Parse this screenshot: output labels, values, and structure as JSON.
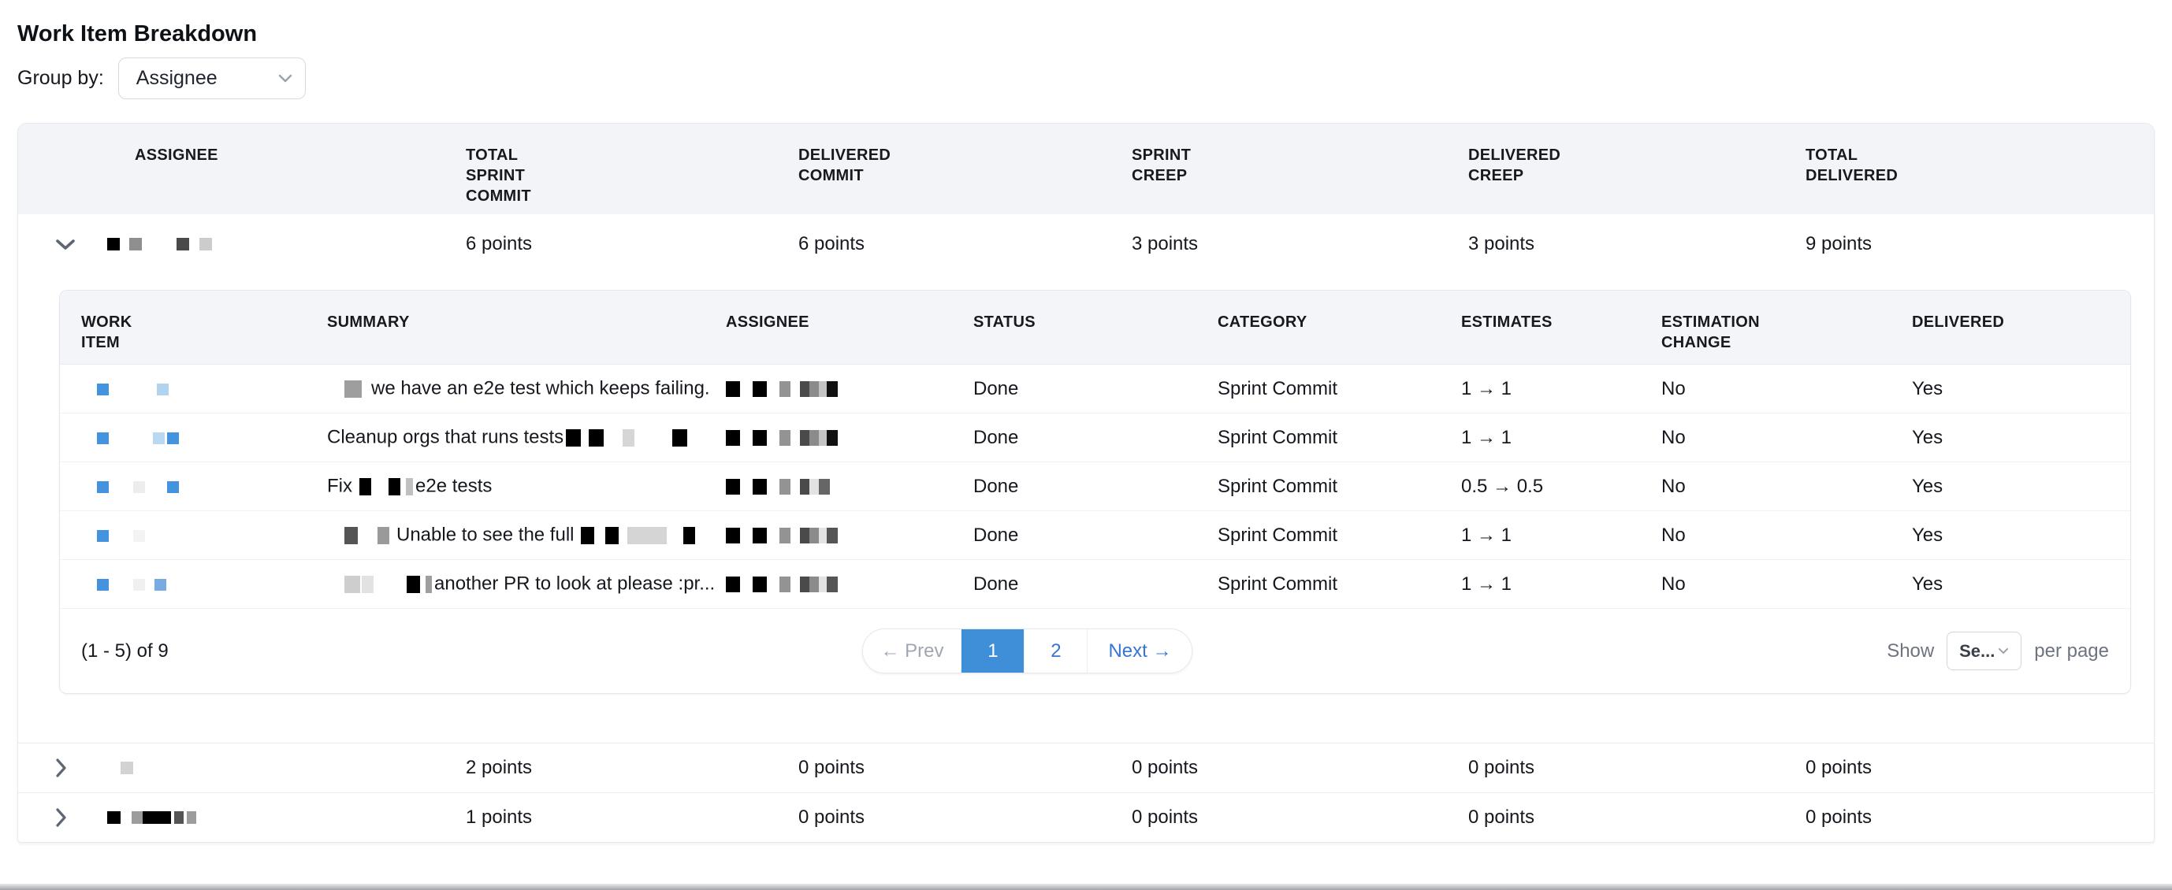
{
  "page": {
    "title": "Work Item Breakdown"
  },
  "group_by": {
    "label": "Group by:",
    "value": "Assignee"
  },
  "colors": {
    "accent_blue": "#4493de",
    "light_blue": "#b1d3ee",
    "pagination_active_bg": "#3e8ed8",
    "link_blue": "#3575d3",
    "header_band": "#f3f4f7"
  },
  "outer_table": {
    "headers": [
      "Assignee",
      "Total Sprint Commit",
      "Delivered Commit",
      "Sprint Creep",
      "Delivered Creep",
      "Total Delivered"
    ],
    "groups": [
      {
        "expanded": true,
        "name_blocks": [
          {
            "w": 16,
            "h": 16,
            "c": "#000000"
          },
          {
            "w": 16,
            "h": 16,
            "c": "#8f8f8f",
            "ml": 12
          },
          {
            "w": 16,
            "h": 16,
            "c": "#4a4a4a",
            "ml": 44
          },
          {
            "w": 16,
            "h": 16,
            "c": "#cccccc",
            "ml": 13
          }
        ],
        "total_sprint_commit": "6 points",
        "delivered_commit": "6 points",
        "sprint_creep": "3 points",
        "delivered_creep": "3 points",
        "total_delivered": "9 points"
      },
      {
        "expanded": false,
        "name_blocks": [
          {
            "w": 16,
            "h": 16,
            "c": "#d2d2d2",
            "ml": 17
          }
        ],
        "total_sprint_commit": "2 points",
        "delivered_commit": "0 points",
        "sprint_creep": "0 points",
        "delivered_creep": "0 points",
        "total_delivered": "0 points"
      },
      {
        "expanded": false,
        "name_blocks": [
          {
            "w": 17,
            "h": 16,
            "c": "#000000"
          },
          {
            "w": 14,
            "h": 16,
            "c": "#9c9c9c",
            "ml": 14
          },
          {
            "w": 36,
            "h": 16,
            "c": "#000000"
          },
          {
            "w": 12,
            "h": 16,
            "c": "#555555",
            "ml": 4
          },
          {
            "w": 12,
            "h": 16,
            "c": "#9c9c9c",
            "ml": 4
          }
        ],
        "total_sprint_commit": "1 points",
        "delivered_commit": "0 points",
        "sprint_creep": "0 points",
        "delivered_creep": "0 points",
        "total_delivered": "0 points"
      }
    ]
  },
  "inner_table": {
    "headers": [
      "Work Item",
      "Summary",
      "Assignee",
      "Status",
      "Category",
      "Estimates",
      "Estimation Change",
      "Delivered"
    ],
    "rows": [
      {
        "type_icons": [
          {
            "w": 15,
            "h": 15,
            "c": "#4493de"
          },
          {
            "w": 15,
            "h": 15,
            "c": "#b1d3ee",
            "ml": 61
          }
        ],
        "summary": [
          {
            "w": 22,
            "h": 22,
            "c": "#9e9e9e",
            "ml": 22,
            "mr": 12
          },
          {
            "t": "we have an e2e test which keeps failing."
          }
        ],
        "assignee_blocks": [
          {
            "w": 18,
            "h": 20,
            "c": "#000000"
          },
          {
            "w": 18,
            "h": 20,
            "c": "#000000",
            "ml": 16
          },
          {
            "w": 14,
            "h": 20,
            "c": "#939393",
            "ml": 16
          },
          {
            "w": 12,
            "h": 20,
            "c": "#4a4a4a",
            "ml": 12
          },
          {
            "w": 12,
            "h": 20,
            "c": "#8b8b8b"
          },
          {
            "w": 10,
            "h": 20,
            "c": "#c4c4c4"
          },
          {
            "w": 14,
            "h": 20,
            "c": "#111111"
          }
        ],
        "status": "Done",
        "category": "Sprint Commit",
        "estimates": "1 → 1",
        "estimation_change": "No",
        "delivered": "Yes"
      },
      {
        "type_icons": [
          {
            "w": 15,
            "h": 15,
            "c": "#4493de"
          },
          {
            "w": 15,
            "h": 15,
            "c": "#b9d8f1",
            "ml": 56
          },
          {
            "w": 15,
            "h": 15,
            "c": "#4493de",
            "ml": 3
          }
        ],
        "summary": [
          {
            "t": "Cleanup orgs that runs tests"
          },
          {
            "w": 19,
            "h": 22,
            "c": "#000000",
            "ml": 3,
            "mr": 10
          },
          {
            "w": 19,
            "h": 22,
            "c": "#000000",
            "mr": 24
          },
          {
            "w": 15,
            "h": 22,
            "c": "#d6d6d6",
            "mr": 48
          },
          {
            "w": 19,
            "h": 22,
            "c": "#000000"
          }
        ],
        "assignee_blocks": [
          {
            "w": 18,
            "h": 20,
            "c": "#000000"
          },
          {
            "w": 18,
            "h": 20,
            "c": "#000000",
            "ml": 16
          },
          {
            "w": 14,
            "h": 20,
            "c": "#939393",
            "ml": 16
          },
          {
            "w": 12,
            "h": 20,
            "c": "#4a4a4a",
            "ml": 12
          },
          {
            "w": 12,
            "h": 20,
            "c": "#8b8b8b"
          },
          {
            "w": 10,
            "h": 20,
            "c": "#c4c4c4"
          },
          {
            "w": 14,
            "h": 20,
            "c": "#111111"
          }
        ],
        "status": "Done",
        "category": "Sprint Commit",
        "estimates": "1 → 1",
        "estimation_change": "No",
        "delivered": "Yes"
      },
      {
        "type_icons": [
          {
            "w": 15,
            "h": 15,
            "c": "#4493de"
          },
          {
            "w": 15,
            "h": 15,
            "c": "#ededed",
            "ml": 31
          },
          {
            "w": 15,
            "h": 15,
            "c": "#4493de",
            "ml": 28
          }
        ],
        "summary": [
          {
            "t": "Fix"
          },
          {
            "w": 15,
            "h": 22,
            "c": "#000000",
            "ml": 9,
            "mr": 22
          },
          {
            "w": 15,
            "h": 22,
            "c": "#000000",
            "mr": 7
          },
          {
            "w": 9,
            "h": 22,
            "c": "#c0c0c0",
            "mr": 3
          },
          {
            "t": "e2e tests"
          }
        ],
        "assignee_blocks": [
          {
            "w": 18,
            "h": 20,
            "c": "#000000"
          },
          {
            "w": 18,
            "h": 20,
            "c": "#000000",
            "ml": 16
          },
          {
            "w": 14,
            "h": 20,
            "c": "#939393",
            "ml": 16
          },
          {
            "w": 12,
            "h": 20,
            "c": "#4a4a4a",
            "ml": 12
          },
          {
            "w": 12,
            "h": 20,
            "c": "#e3e3e3"
          },
          {
            "w": 14,
            "h": 20,
            "c": "#666666"
          }
        ],
        "status": "Done",
        "category": "Sprint Commit",
        "estimates": "0.5 → 0.5",
        "estimation_change": "No",
        "delivered": "Yes"
      },
      {
        "type_icons": [
          {
            "w": 15,
            "h": 15,
            "c": "#4493de"
          },
          {
            "w": 15,
            "h": 15,
            "c": "#f3f3f3",
            "ml": 31
          }
        ],
        "summary": [
          {
            "w": 17,
            "h": 22,
            "c": "#555555",
            "ml": 22,
            "mr": 25
          },
          {
            "w": 15,
            "h": 22,
            "c": "#9a9a9a",
            "mr": 9
          },
          {
            "t": "Unable to see the full"
          },
          {
            "w": 17,
            "h": 22,
            "c": "#000000",
            "ml": 9,
            "mr": 14
          },
          {
            "w": 17,
            "h": 22,
            "c": "#000000",
            "mr": 11
          },
          {
            "w": 50,
            "h": 22,
            "c": "#d5d5d5",
            "mr": 21
          },
          {
            "w": 15,
            "h": 22,
            "c": "#000000"
          }
        ],
        "assignee_blocks": [
          {
            "w": 18,
            "h": 20,
            "c": "#000000"
          },
          {
            "w": 18,
            "h": 20,
            "c": "#000000",
            "ml": 16
          },
          {
            "w": 14,
            "h": 20,
            "c": "#939393",
            "ml": 16
          },
          {
            "w": 12,
            "h": 20,
            "c": "#4a4a4a",
            "ml": 12
          },
          {
            "w": 12,
            "h": 20,
            "c": "#8b8b8b"
          },
          {
            "w": 10,
            "h": 20,
            "c": "#e3e3e3"
          },
          {
            "w": 14,
            "h": 20,
            "c": "#555555"
          }
        ],
        "status": "Done",
        "category": "Sprint Commit",
        "estimates": "1 → 1",
        "estimation_change": "No",
        "delivered": "Yes"
      },
      {
        "type_icons": [
          {
            "w": 15,
            "h": 15,
            "c": "#4493de"
          },
          {
            "w": 15,
            "h": 15,
            "c": "#f0f0f0",
            "ml": 31
          },
          {
            "w": 15,
            "h": 15,
            "c": "#79abe3",
            "ml": 12
          }
        ],
        "summary": [
          {
            "w": 20,
            "h": 22,
            "c": "#cecece",
            "ml": 22,
            "mr": 2
          },
          {
            "w": 15,
            "h": 22,
            "c": "#e2e2e2",
            "mr": 42
          },
          {
            "w": 17,
            "h": 22,
            "c": "#000000",
            "mr": 7
          },
          {
            "w": 8,
            "h": 22,
            "c": "#9e9e9e",
            "mr": 3
          },
          {
            "t": "another PR to look at please :pr..."
          }
        ],
        "assignee_blocks": [
          {
            "w": 18,
            "h": 20,
            "c": "#000000"
          },
          {
            "w": 18,
            "h": 20,
            "c": "#000000",
            "ml": 16
          },
          {
            "w": 14,
            "h": 20,
            "c": "#939393",
            "ml": 16
          },
          {
            "w": 12,
            "h": 20,
            "c": "#4a4a4a",
            "ml": 12
          },
          {
            "w": 12,
            "h": 20,
            "c": "#8b8b8b"
          },
          {
            "w": 10,
            "h": 20,
            "c": "#e3e3e3"
          },
          {
            "w": 14,
            "h": 20,
            "c": "#555555"
          }
        ],
        "status": "Done",
        "category": "Sprint Commit",
        "estimates": "1 → 1",
        "estimation_change": "No",
        "delivered": "Yes"
      }
    ],
    "pagination": {
      "range": "(1 - 5) of 9",
      "prev": "← Prev",
      "pages": [
        "1",
        "2"
      ],
      "active_page": "1",
      "next": "Next →",
      "show": "Show",
      "page_size_value": "Se...",
      "per_page": "per page"
    }
  }
}
